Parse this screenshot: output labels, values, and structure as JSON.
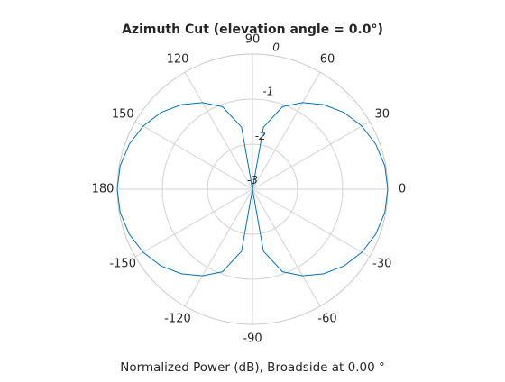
{
  "chart_data": {
    "type": "line",
    "coordinate_system": "polar",
    "title": "Azimuth Cut (elevation angle = 0.0°)",
    "caption": "Normalized Power (dB), Broadside at 0.00 °",
    "angle_unit": "degrees",
    "angle_zero_direction": "right",
    "angle_direction": "counterclockwise",
    "angle_ticks": [
      0,
      30,
      60,
      90,
      120,
      150,
      180,
      -150,
      -120,
      -90,
      -60,
      -30
    ],
    "angle_tick_labels": [
      "0",
      "30",
      "60",
      "90",
      "120",
      "150",
      "180",
      "-150",
      "-120",
      "-90",
      "-60",
      "-30"
    ],
    "radial_range": [
      -3,
      0
    ],
    "radial_ticks": [
      -3,
      -2,
      -1,
      0
    ],
    "radial_tick_labels": [
      "-3",
      "-2",
      "-1",
      "0"
    ],
    "radial_label_angle": 80,
    "grid": true,
    "series": [
      {
        "color": "#0072BD",
        "pattern": "normalized power vs azimuth, maximum 0 dB at 0° and 180°, minimum -3 dB at ±90°",
        "theta_deg": [
          0,
          10,
          20,
          30,
          40,
          50,
          60,
          70,
          80,
          90,
          100,
          110,
          120,
          130,
          140,
          150,
          160,
          170,
          180,
          -170,
          -160,
          -150,
          -140,
          -130,
          -120,
          -110,
          -100,
          -90,
          -80,
          -70,
          -60,
          -50,
          -40,
          -30,
          -20,
          -10
        ],
        "r_db": [
          0,
          -0.02,
          -0.09,
          -0.2,
          -0.35,
          -0.55,
          -0.78,
          -1.05,
          -1.6,
          -3,
          -1.6,
          -1.05,
          -0.78,
          -0.55,
          -0.35,
          -0.2,
          -0.09,
          -0.02,
          0,
          -0.02,
          -0.09,
          -0.2,
          -0.35,
          -0.55,
          -0.78,
          -1.05,
          -1.6,
          -3,
          -1.6,
          -1.05,
          -0.78,
          -0.55,
          -0.35,
          -0.2,
          -0.09,
          -0.02
        ]
      }
    ]
  }
}
